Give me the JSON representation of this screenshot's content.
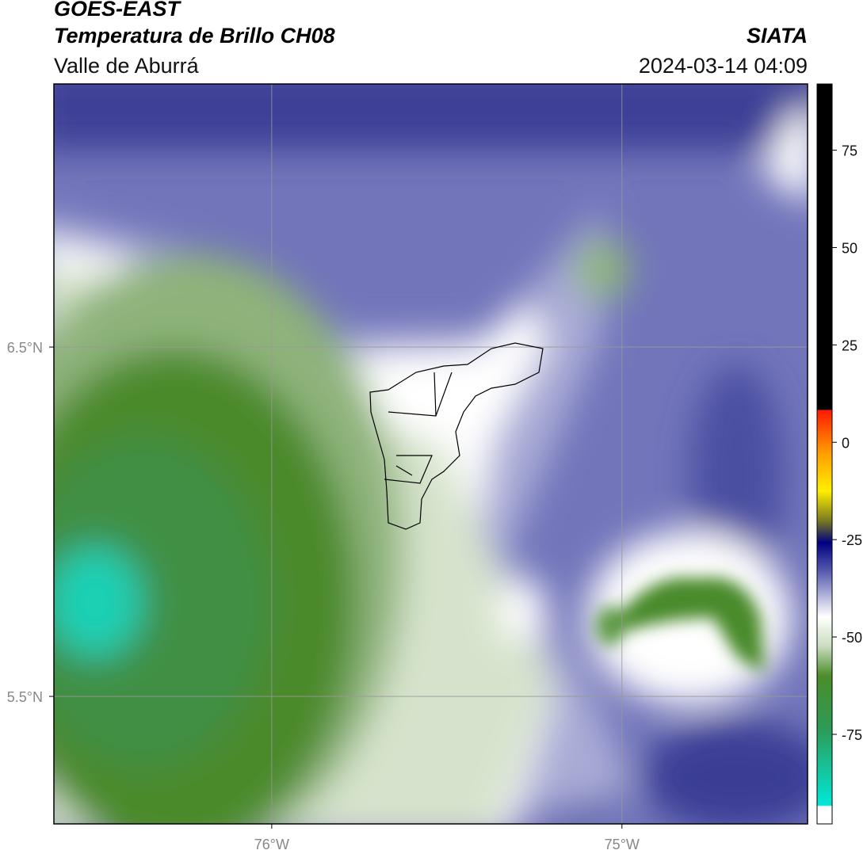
{
  "header": {
    "title": "GOES-EAST",
    "subtitle": "Temperatura de Brillo CH08",
    "source": "SIATA",
    "region": "Valle de Aburrá",
    "datetime": "2024-03-14 04:09"
  },
  "map": {
    "xlim": [
      -76.622,
      -74.47
    ],
    "ylim": [
      5.135,
      7.253
    ],
    "xticks": [
      {
        "value": -76,
        "label": "76°W"
      },
      {
        "value": -75,
        "label": "75°W"
      }
    ],
    "yticks": [
      {
        "value": 6.5,
        "label": "6.5°N"
      },
      {
        "value": 5.5,
        "label": "5.5°N"
      }
    ]
  },
  "colorbar": {
    "lim": [
      -98,
      92
    ],
    "ticks": [
      75,
      50,
      25,
      0,
      -25,
      -50,
      -75
    ]
  }
}
